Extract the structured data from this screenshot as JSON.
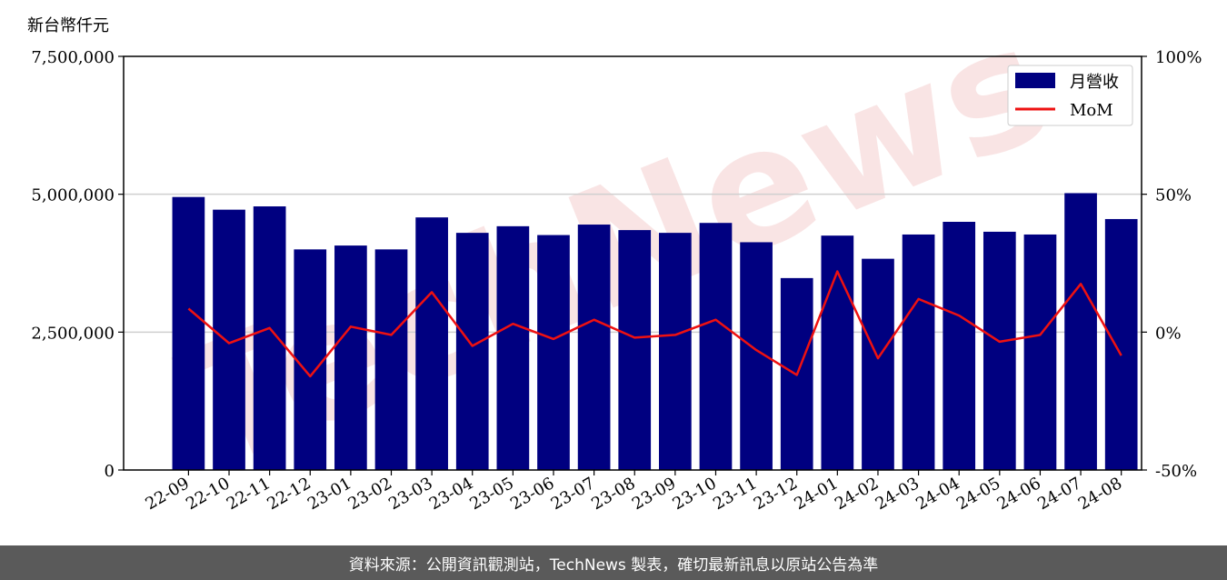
{
  "unit_label": "新台幣仟元",
  "footer_text": "資料來源：公開資訊觀測站，TechNews 製表，確切最新訊息以原站公告為準",
  "watermark_text": "TechNews",
  "colors": {
    "bar": "#000080",
    "line": "#ee1111",
    "watermark": "#f2c4c4",
    "footer_bg": "#5a5a5a"
  },
  "chart_data": {
    "type": "bar",
    "categories": [
      "22-09",
      "22-10",
      "22-11",
      "22-12",
      "23-01",
      "23-02",
      "23-03",
      "23-04",
      "23-05",
      "23-06",
      "23-07",
      "23-08",
      "23-09",
      "23-10",
      "23-11",
      "23-12",
      "24-01",
      "24-02",
      "24-03",
      "24-04",
      "24-05",
      "24-06",
      "24-07",
      "24-08"
    ],
    "series": [
      {
        "name": "月營收",
        "type": "bar",
        "axis": "left",
        "values": [
          4950000,
          4720000,
          4780000,
          4000000,
          4070000,
          4000000,
          4580000,
          4300000,
          4420000,
          4260000,
          4450000,
          4350000,
          4300000,
          4480000,
          4130000,
          3480000,
          4250000,
          3830000,
          4270000,
          4500000,
          4320000,
          4270000,
          5020000,
          4550000
        ]
      },
      {
        "name": "MoM",
        "type": "line",
        "axis": "right",
        "values": [
          8.5,
          -4,
          1.5,
          -16,
          2,
          -1,
          14.5,
          -5,
          3,
          -2.5,
          4.5,
          -2,
          -1,
          4.5,
          -6.5,
          -15.5,
          22,
          -9.5,
          12,
          6,
          -3.5,
          -1,
          17.5,
          -8.5
        ]
      }
    ],
    "left_axis": {
      "ylim": [
        0,
        7500000
      ],
      "ticks": [
        "0",
        "2,500,000",
        "5,000,000",
        "7,500,000"
      ],
      "tick_values": [
        0,
        2500000,
        5000000,
        7500000
      ]
    },
    "right_axis": {
      "ylim": [
        -50,
        100
      ],
      "ticks": [
        "-50%",
        "0%",
        "50%",
        "100%"
      ],
      "tick_values": [
        -50,
        0,
        50,
        100
      ]
    },
    "grid": "horizontal",
    "legend_position": "top-right"
  }
}
